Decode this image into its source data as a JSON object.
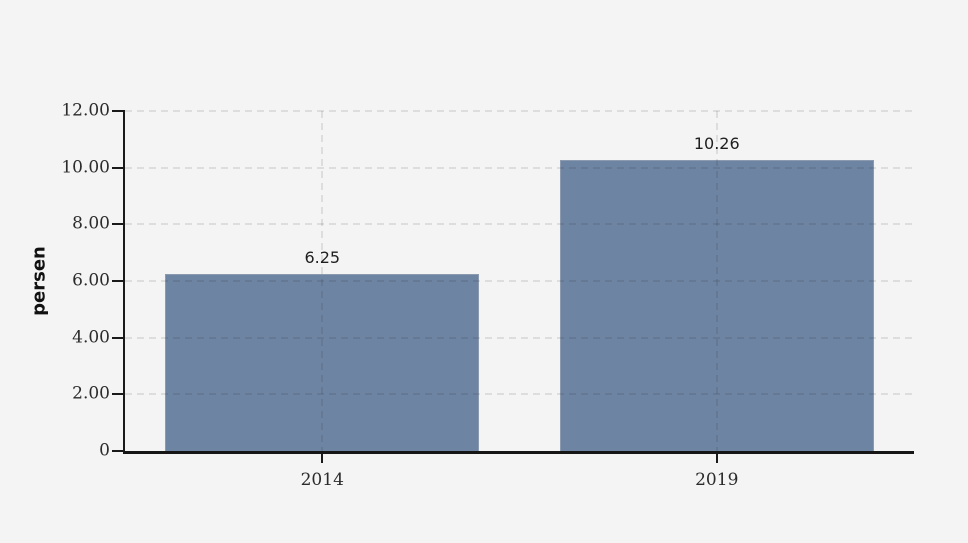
{
  "page": {
    "background_color": "#f4f4f4"
  },
  "chart_data": {
    "type": "bar",
    "title": "",
    "xlabel": "",
    "ylabel": "persen",
    "categories": [
      "2014",
      "2019"
    ],
    "values": [
      6.25,
      10.26
    ],
    "value_labels": [
      "6.25",
      "10.26"
    ],
    "ylim": [
      0,
      12
    ],
    "yticks": [
      {
        "value": 0,
        "label": "0"
      },
      {
        "value": 2,
        "label": "2.00"
      },
      {
        "value": 4,
        "label": "4.00"
      },
      {
        "value": 6,
        "label": "6.00"
      },
      {
        "value": 8,
        "label": "8.00"
      },
      {
        "value": 10,
        "label": "10.00"
      },
      {
        "value": 12,
        "label": "12.00"
      }
    ],
    "grid": "dashed",
    "gridlines": "horizontal at every 2 units, vertical at each category center, drawn over bars",
    "legend_position": "none",
    "bar_color": "#6e84a3",
    "bar_border_color": "#8c9ab0",
    "axis_color": "#1a1a1a",
    "bar_width_fraction": 0.795
  }
}
